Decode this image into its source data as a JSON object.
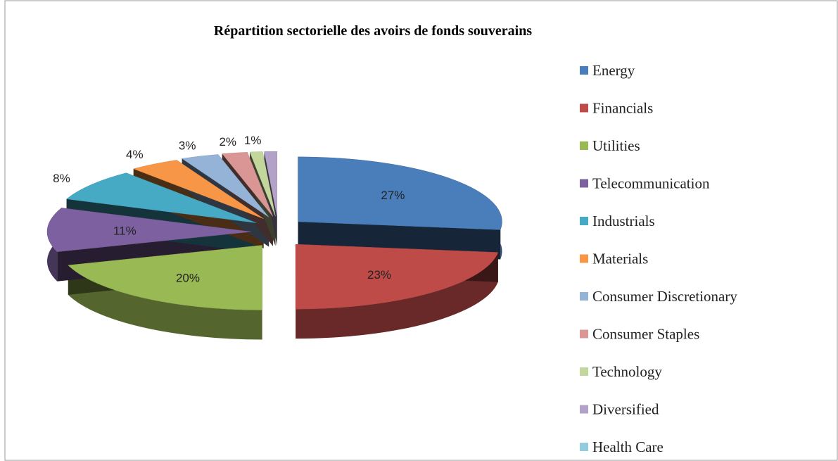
{
  "chart_data": {
    "type": "pie3d",
    "title": "Répartition sectorielle des avoirs de fonds souverains",
    "categories": [
      "Energy",
      "Financials",
      "Utilities",
      "Telecommunication",
      "Industrials",
      "Materials",
      "Consumer Discretionary",
      "Consumer Staples",
      "Technology",
      "Diversified",
      "Health Care"
    ],
    "values": [
      27,
      23,
      20,
      11,
      8,
      4,
      3,
      2,
      1,
      1,
      0
    ],
    "value_labels": [
      "27%",
      "23%",
      "20%",
      "11%",
      "8%",
      "4%",
      "3%",
      "2%",
      "1%",
      null,
      null
    ],
    "colors": [
      "#4a7ebb",
      "#be4b48",
      "#98b954",
      "#7d60a0",
      "#46aac5",
      "#f79646",
      "#95b3d7",
      "#d99694",
      "#c3d69b",
      "#b3a2c7",
      "#93cddd"
    ],
    "legend": "right"
  }
}
